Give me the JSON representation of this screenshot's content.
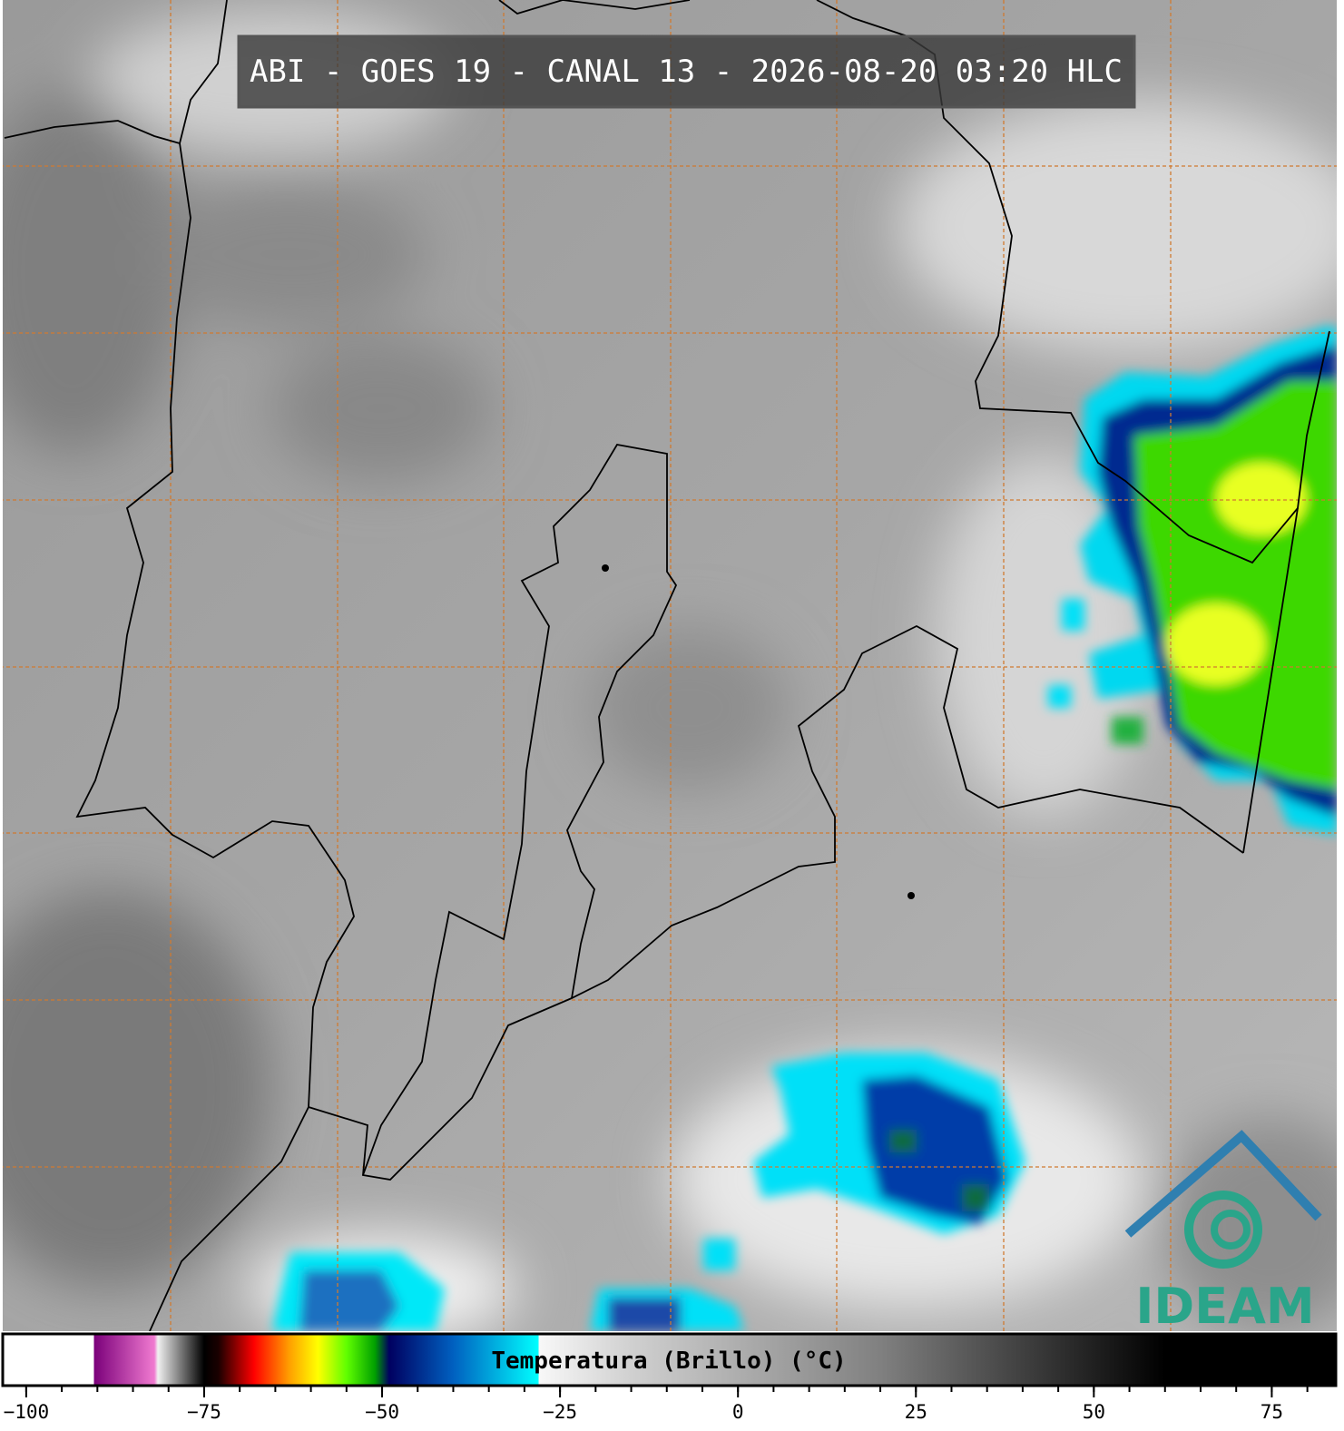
{
  "title": "ABI - GOES 19 - CANAL 13 - 2026-08-20 03:20 HLC",
  "logo": "IDEAM",
  "colorbar": {
    "label": "Temperatura (Brillo) (°C)",
    "lim": [
      -103.3,
      84
    ],
    "ticks": [
      {
        "value": -100,
        "label": "−100"
      },
      {
        "value": -75,
        "label": "−75"
      },
      {
        "value": -50,
        "label": "−50"
      },
      {
        "value": -25,
        "label": "−25"
      },
      0,
      25,
      50,
      75
    ],
    "minor_tick_interval": 5,
    "colormap": [
      [
        -103.3,
        "#ffffff"
      ],
      [
        -90.5,
        "#ffffff"
      ],
      [
        -90.5,
        "#7a007a"
      ],
      [
        -82,
        "#f07ad0"
      ],
      [
        -81.5,
        "#f0f0f0"
      ],
      [
        -75,
        "#000000"
      ],
      [
        -73,
        "#1a0000"
      ],
      [
        -68,
        "#ff0000"
      ],
      [
        -63,
        "#ffa000"
      ],
      [
        -59,
        "#ffff00"
      ],
      [
        -55,
        "#60ff00"
      ],
      [
        -51,
        "#00a000"
      ],
      [
        -49,
        "#000060"
      ],
      [
        -40,
        "#0060c0"
      ],
      [
        -28,
        "#00ffff"
      ],
      [
        -28,
        "#f8f8f8"
      ],
      [
        -15,
        "#d0d0d0"
      ],
      [
        20,
        "#808080"
      ],
      [
        60,
        "#000000"
      ],
      [
        84,
        "#000000"
      ]
    ]
  }
}
